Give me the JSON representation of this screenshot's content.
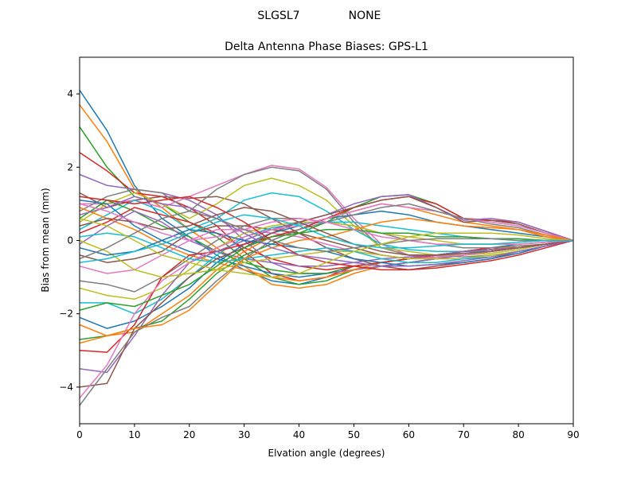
{
  "figure": {
    "suptitle_left": "SLGSL7",
    "suptitle_right": "NONE"
  },
  "chart_data": {
    "type": "line",
    "title": "Delta Antenna Phase Biases: GPS-L1",
    "xlabel": "Elvation angle (degrees)",
    "ylabel": "Bias from mean (mm)",
    "xlim": [
      0,
      90
    ],
    "ylim": [
      -5,
      5
    ],
    "x": [
      0,
      5,
      10,
      15,
      20,
      25,
      30,
      35,
      40,
      45,
      50,
      55,
      60,
      65,
      70,
      75,
      80,
      85,
      90
    ],
    "xticks": [
      0,
      10,
      20,
      30,
      40,
      50,
      60,
      70,
      80,
      90
    ],
    "yticks": [
      -4,
      -2,
      0,
      2,
      4
    ],
    "grid": false,
    "legend": "none",
    "colors": [
      "#1f77b4",
      "#ff7f0e",
      "#2ca02c",
      "#d62728",
      "#9467bd",
      "#8c564b",
      "#e377c2",
      "#7f7f7f",
      "#bcbd22",
      "#17becf"
    ],
    "series": [
      {
        "values": [
          4.1,
          3.0,
          1.5,
          0.6,
          0.1,
          -0.4,
          -0.8,
          -1.1,
          -1.2,
          -1.0,
          -0.8,
          -0.6,
          -0.5,
          -0.4,
          -0.3,
          -0.2,
          -0.1,
          -0.05,
          0
        ]
      },
      {
        "values": [
          3.7,
          2.7,
          1.4,
          0.9,
          0.3,
          -0.2,
          -0.7,
          -1.2,
          -1.3,
          -1.2,
          -0.9,
          -0.7,
          -0.6,
          -0.5,
          -0.4,
          -0.3,
          -0.2,
          -0.1,
          0
        ]
      },
      {
        "values": [
          3.1,
          2.0,
          1.2,
          1.0,
          0.5,
          0.1,
          -0.5,
          -1.0,
          -1.2,
          -1.1,
          -0.8,
          -0.7,
          -0.6,
          -0.5,
          -0.4,
          -0.3,
          -0.2,
          -0.1,
          0
        ]
      },
      {
        "values": [
          2.4,
          1.9,
          1.3,
          1.2,
          0.9,
          0.4,
          -0.3,
          -0.9,
          -1.1,
          -1.0,
          -0.7,
          -0.6,
          -0.5,
          -0.4,
          -0.3,
          -0.2,
          -0.2,
          -0.1,
          0
        ]
      },
      {
        "values": [
          1.8,
          1.5,
          1.4,
          1.3,
          1.1,
          0.7,
          0.0,
          -0.6,
          -0.9,
          -0.9,
          -0.8,
          -0.7,
          -0.6,
          -0.5,
          -0.4,
          -0.3,
          -0.2,
          -0.1,
          0
        ]
      },
      {
        "values": [
          1.3,
          0.9,
          1.1,
          1.2,
          1.15,
          1.2,
          1.0,
          0.6,
          0.2,
          -0.2,
          -0.5,
          -0.7,
          -0.8,
          -0.7,
          -0.6,
          -0.5,
          -0.3,
          -0.15,
          0
        ]
      },
      {
        "values": [
          1.0,
          1.0,
          1.1,
          0.9,
          1.2,
          1.5,
          1.8,
          2.05,
          1.95,
          1.45,
          0.6,
          -0.1,
          -0.4,
          -0.5,
          -0.5,
          -0.45,
          -0.3,
          -0.15,
          0
        ]
      },
      {
        "values": [
          0.8,
          1.2,
          1.4,
          1.3,
          0.8,
          1.4,
          1.8,
          2.0,
          1.9,
          1.4,
          0.5,
          -0.2,
          -0.4,
          -0.4,
          -0.45,
          -0.4,
          -0.3,
          -0.15,
          0
        ]
      },
      {
        "values": [
          0.5,
          1.0,
          1.3,
          1.0,
          0.6,
          1.0,
          1.5,
          1.7,
          1.5,
          1.1,
          0.4,
          -0.2,
          -0.3,
          -0.4,
          -0.4,
          -0.35,
          -0.25,
          -0.1,
          0
        ]
      },
      {
        "values": [
          0.3,
          0.7,
          1.1,
          0.8,
          0.3,
          0.6,
          1.1,
          1.3,
          1.2,
          0.8,
          0.3,
          -0.1,
          -0.25,
          -0.3,
          -0.3,
          -0.3,
          -0.2,
          -0.1,
          0
        ]
      },
      {
        "values": [
          1.1,
          1.0,
          0.4,
          0.0,
          -0.3,
          -0.5,
          -0.7,
          -0.9,
          -1.0,
          -0.9,
          -0.7,
          -0.6,
          -0.5,
          -0.4,
          -0.35,
          -0.3,
          -0.2,
          -0.1,
          0
        ]
      },
      {
        "values": [
          0.9,
          0.6,
          0.3,
          -0.1,
          -0.4,
          -0.6,
          -0.8,
          -1.0,
          -1.1,
          -1.0,
          -0.8,
          -0.6,
          -0.5,
          -0.4,
          -0.3,
          -0.25,
          -0.15,
          -0.1,
          0
        ]
      },
      {
        "values": [
          0.6,
          1.1,
          0.8,
          0.4,
          0.1,
          -0.3,
          -0.6,
          -0.8,
          -0.9,
          -0.9,
          -0.7,
          -0.6,
          -0.5,
          -0.4,
          -0.3,
          -0.25,
          -0.2,
          -0.1,
          0
        ]
      },
      {
        "values": [
          0.2,
          0.5,
          0.9,
          0.7,
          0.5,
          0.2,
          -0.2,
          -0.5,
          -0.7,
          -0.8,
          -0.7,
          -0.6,
          -0.5,
          -0.4,
          -0.3,
          -0.25,
          -0.2,
          -0.1,
          0
        ]
      },
      {
        "values": [
          -0.1,
          0.4,
          0.8,
          0.5,
          0.0,
          -0.3,
          -0.5,
          -0.6,
          -0.7,
          -0.7,
          -0.6,
          -0.5,
          -0.45,
          -0.4,
          -0.3,
          -0.25,
          -0.2,
          -0.1,
          0
        ]
      },
      {
        "values": [
          -0.4,
          -0.6,
          -0.5,
          -0.3,
          0.2,
          0.4,
          0.4,
          0.3,
          0.2,
          0.0,
          -0.2,
          -0.4,
          -0.5,
          -0.45,
          -0.4,
          -0.3,
          -0.2,
          -0.1,
          0
        ]
      },
      {
        "values": [
          -0.7,
          -0.9,
          -0.8,
          -0.4,
          0.0,
          0.3,
          0.3,
          0.2,
          0.1,
          -0.1,
          -0.3,
          -0.4,
          -0.5,
          -0.45,
          -0.4,
          -0.3,
          -0.2,
          -0.1,
          0
        ]
      },
      {
        "values": [
          -1.1,
          -1.2,
          -1.4,
          -1.0,
          -0.5,
          0.0,
          0.4,
          0.6,
          0.6,
          0.5,
          0.4,
          0.2,
          0.0,
          -0.1,
          -0.2,
          -0.2,
          -0.15,
          -0.1,
          0
        ]
      },
      {
        "values": [
          -1.3,
          -1.5,
          -1.6,
          -1.3,
          -0.8,
          -0.2,
          0.2,
          0.4,
          0.5,
          0.5,
          0.4,
          0.2,
          0.1,
          0.0,
          -0.1,
          -0.1,
          -0.1,
          -0.05,
          0
        ]
      },
      {
        "values": [
          -1.7,
          -1.7,
          -2.0,
          -1.6,
          -1.0,
          -0.4,
          0.1,
          0.35,
          0.45,
          0.5,
          0.5,
          0.4,
          0.3,
          0.2,
          0.1,
          0.05,
          0.0,
          0.0,
          0
        ]
      },
      {
        "values": [
          -2.1,
          -2.4,
          -2.2,
          -1.8,
          -1.3,
          -0.6,
          -0.1,
          0.2,
          0.4,
          0.6,
          0.7,
          0.8,
          0.7,
          0.5,
          0.4,
          0.3,
          0.2,
          0.1,
          0
        ]
      },
      {
        "values": [
          -2.3,
          -2.6,
          -2.5,
          -2.0,
          -1.5,
          -0.8,
          -0.3,
          0.1,
          0.3,
          0.6,
          0.8,
          1.0,
          0.9,
          0.7,
          0.5,
          0.4,
          0.3,
          0.1,
          0
        ]
      },
      {
        "values": [
          -2.7,
          -2.6,
          -2.4,
          -2.2,
          -1.6,
          -0.9,
          -0.4,
          -0.1,
          0.2,
          0.5,
          0.9,
          1.2,
          1.25,
          1.0,
          0.6,
          0.55,
          0.45,
          0.2,
          0
        ]
      },
      {
        "values": [
          -3.0,
          -3.05,
          -2.3,
          -1.0,
          -0.4,
          -0.3,
          -0.1,
          0.1,
          0.3,
          0.6,
          0.9,
          1.1,
          1.2,
          1.0,
          0.6,
          0.55,
          0.5,
          0.25,
          0
        ]
      },
      {
        "values": [
          -3.5,
          -3.6,
          -2.6,
          -1.5,
          -0.6,
          -0.3,
          0.0,
          0.3,
          0.5,
          0.7,
          1.0,
          1.2,
          1.25,
          0.9,
          0.55,
          0.6,
          0.5,
          0.25,
          0
        ]
      },
      {
        "values": [
          -4.0,
          -3.9,
          -2.4,
          -1.7,
          -1.0,
          -0.5,
          -0.2,
          0.2,
          0.5,
          0.7,
          0.9,
          1.1,
          1.2,
          0.9,
          0.5,
          0.55,
          0.45,
          0.2,
          0
        ]
      },
      {
        "values": [
          -4.3,
          -3.4,
          -2.0,
          -1.1,
          -0.6,
          -0.2,
          0.1,
          0.3,
          0.4,
          0.6,
          0.8,
          1.0,
          0.9,
          0.8,
          0.6,
          0.5,
          0.4,
          0.2,
          0
        ]
      },
      {
        "values": [
          -4.5,
          -3.5,
          -2.5,
          -2.1,
          -1.8,
          -1.1,
          -0.5,
          0.0,
          0.3,
          0.5,
          0.7,
          0.9,
          1.0,
          0.8,
          0.6,
          0.45,
          0.35,
          0.15,
          0
        ]
      },
      {
        "values": [
          0.0,
          -0.3,
          -0.8,
          -1.0,
          -0.9,
          -0.8,
          -0.6,
          -0.5,
          -0.4,
          -0.3,
          -0.3,
          -0.4,
          -0.5,
          -0.5,
          -0.5,
          -0.4,
          -0.3,
          -0.15,
          0
        ]
      },
      {
        "values": [
          0.1,
          0.2,
          0.1,
          -0.2,
          -0.5,
          -0.6,
          -0.5,
          -0.4,
          -0.3,
          -0.2,
          -0.3,
          -0.5,
          -0.6,
          -0.6,
          -0.5,
          -0.45,
          -0.3,
          -0.15,
          0
        ]
      },
      {
        "values": [
          -0.2,
          -0.4,
          -0.3,
          0.0,
          0.3,
          0.2,
          0.0,
          -0.1,
          -0.2,
          -0.3,
          -0.5,
          -0.6,
          -0.7,
          -0.65,
          -0.6,
          -0.5,
          -0.35,
          -0.15,
          0
        ]
      },
      {
        "values": [
          -2.8,
          -2.6,
          -2.4,
          -2.3,
          -1.9,
          -1.2,
          -0.5,
          -0.2,
          0.0,
          0.1,
          0.3,
          0.5,
          0.6,
          0.5,
          0.4,
          0.35,
          0.3,
          0.15,
          0
        ]
      },
      {
        "values": [
          -1.9,
          -1.7,
          -1.8,
          -1.5,
          -1.2,
          -0.7,
          -0.2,
          0.1,
          0.2,
          0.3,
          0.3,
          0.2,
          0.2,
          0.1,
          0.1,
          0.05,
          0.05,
          0.0,
          0
        ]
      },
      {
        "values": [
          1.2,
          1.1,
          1.0,
          1.1,
          1.2,
          0.9,
          0.5,
          0.0,
          -0.4,
          -0.6,
          -0.7,
          -0.8,
          -0.8,
          -0.75,
          -0.65,
          -0.55,
          -0.4,
          -0.2,
          0
        ]
      },
      {
        "values": [
          0.7,
          0.9,
          1.2,
          1.0,
          0.9,
          0.6,
          0.2,
          -0.2,
          -0.4,
          -0.5,
          -0.6,
          -0.7,
          -0.7,
          -0.65,
          -0.55,
          -0.45,
          -0.3,
          -0.15,
          0
        ]
      },
      {
        "values": [
          0.4,
          0.6,
          0.5,
          0.3,
          0.4,
          0.7,
          0.9,
          0.8,
          0.5,
          0.2,
          -0.1,
          -0.3,
          -0.4,
          -0.4,
          -0.35,
          -0.3,
          -0.2,
          -0.1,
          0
        ]
      },
      {
        "values": [
          1.0,
          0.8,
          0.5,
          0.2,
          0.0,
          0.1,
          0.3,
          0.5,
          0.6,
          0.5,
          0.3,
          0.1,
          0.0,
          -0.1,
          -0.1,
          -0.1,
          -0.1,
          -0.05,
          0
        ]
      },
      {
        "values": [
          -0.5,
          -0.2,
          0.2,
          0.6,
          0.8,
          0.6,
          0.3,
          0.0,
          -0.2,
          -0.3,
          -0.2,
          -0.1,
          0.0,
          0.05,
          0.05,
          0.05,
          0.0,
          0.0,
          0
        ]
      },
      {
        "values": [
          0.6,
          0.4,
          0.0,
          -0.4,
          -0.6,
          -0.8,
          -0.9,
          -1.0,
          -0.9,
          -0.6,
          -0.3,
          -0.1,
          0.1,
          0.2,
          0.2,
          0.2,
          0.15,
          0.05,
          0
        ]
      },
      {
        "values": [
          -0.6,
          -0.5,
          -0.3,
          -0.1,
          0.2,
          0.5,
          0.7,
          0.6,
          0.4,
          0.1,
          -0.1,
          -0.2,
          -0.2,
          -0.15,
          -0.1,
          -0.1,
          -0.05,
          0.0,
          0
        ]
      }
    ]
  }
}
